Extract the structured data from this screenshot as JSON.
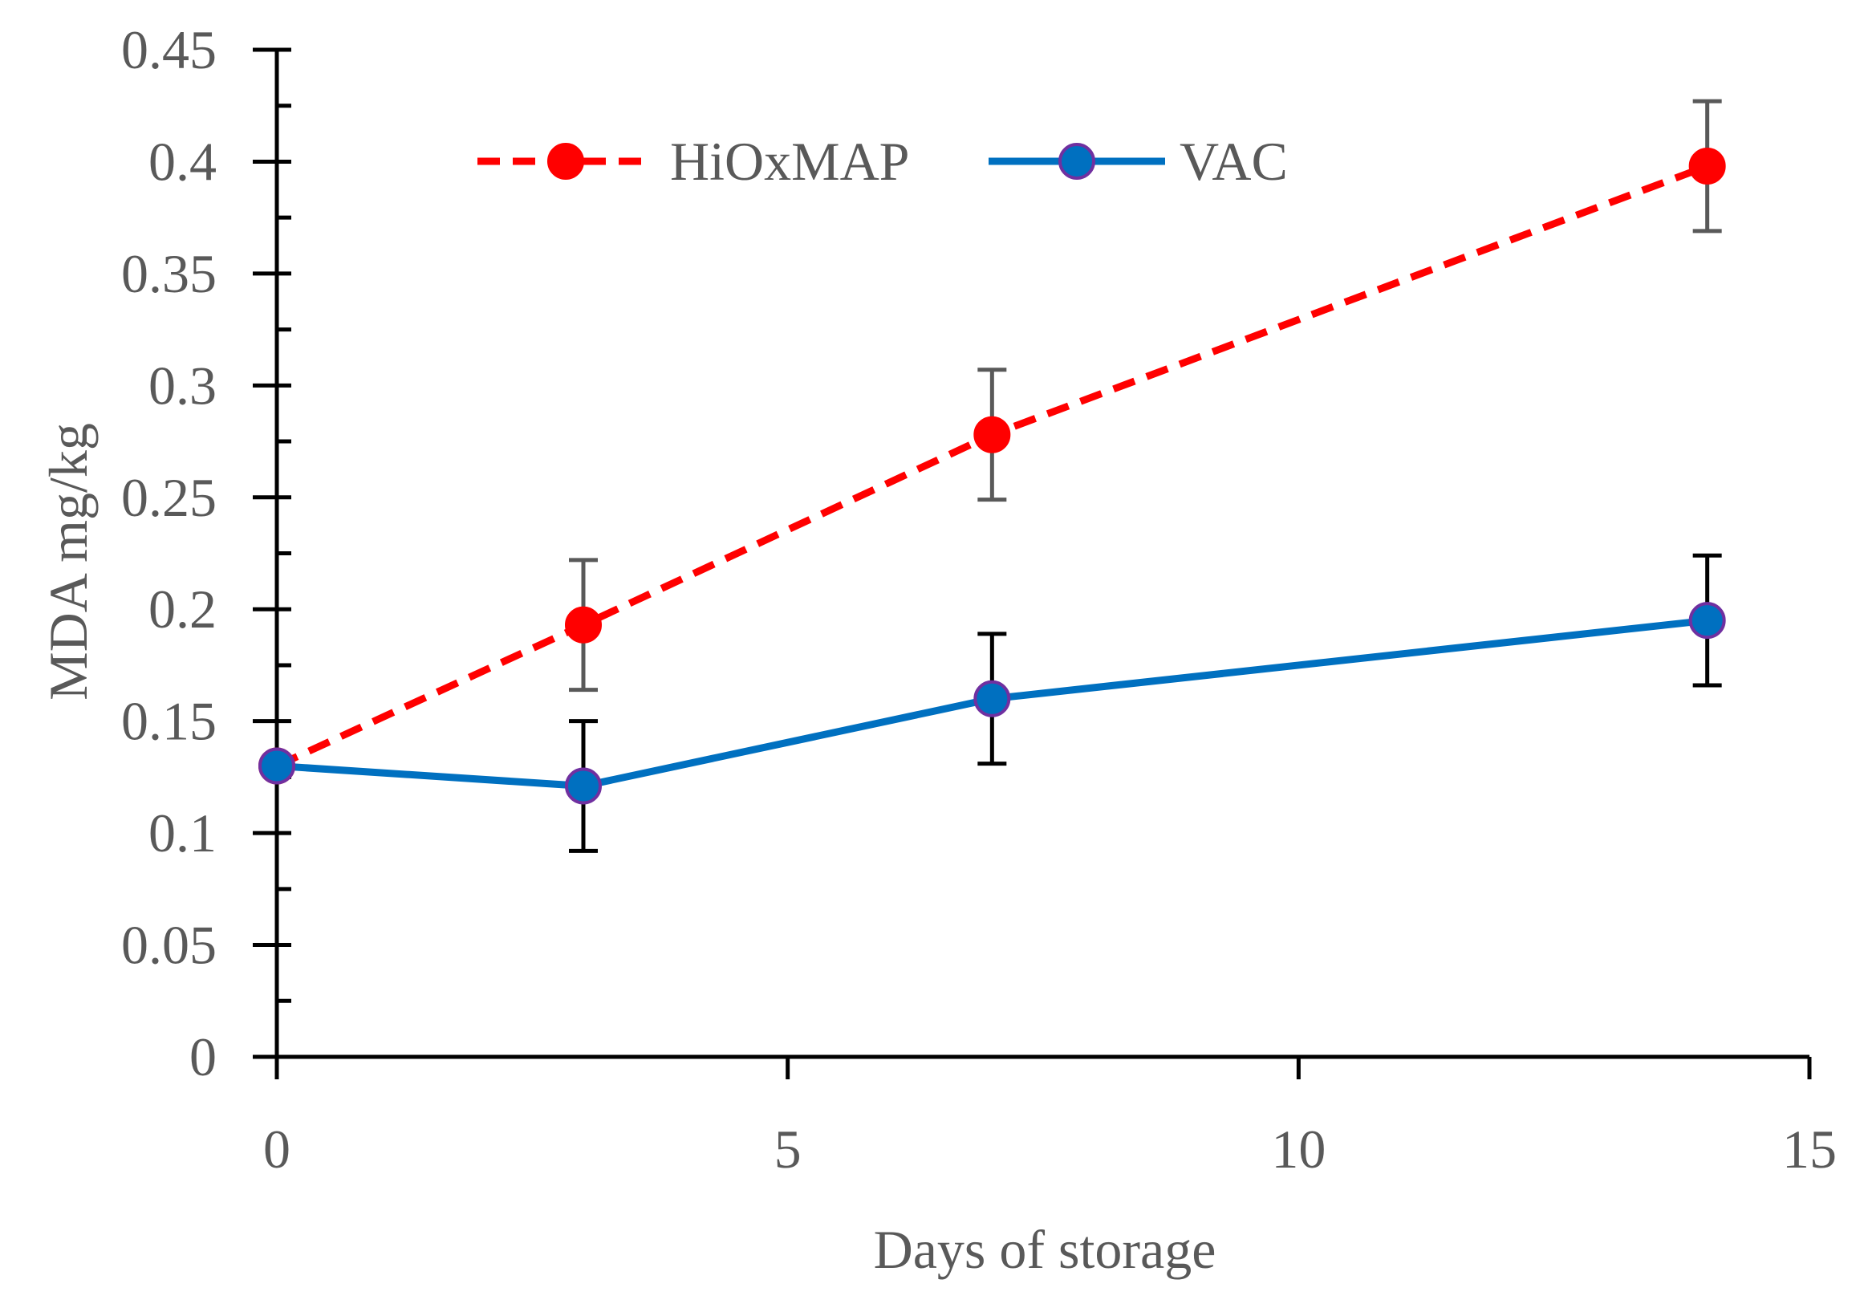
{
  "chart_data": {
    "type": "line",
    "title": "",
    "xlabel": "Days of storage",
    "ylabel": "MDA mg/kg",
    "xlim": [
      0,
      15
    ],
    "ylim": [
      0,
      0.45
    ],
    "x_ticks": [
      0,
      5,
      10,
      15
    ],
    "x_tick_labels": [
      "0",
      "5",
      "10",
      "15"
    ],
    "y_ticks": [
      0,
      0.05,
      0.1,
      0.15,
      0.2,
      0.25,
      0.3,
      0.35,
      0.4,
      0.45
    ],
    "y_tick_labels": [
      "0",
      "0.05",
      "0.1",
      "0.15",
      "0.2",
      "0.25",
      "0.3",
      "0.35",
      "0.4",
      "0.45"
    ],
    "y_minor_step": 0.025,
    "grid": false,
    "legend_position": "top-center",
    "series": [
      {
        "name": "HiOxMAP",
        "x": [
          0,
          3,
          7,
          14
        ],
        "values": [
          0.13,
          0.193,
          0.278,
          0.398
        ],
        "error": [
          0,
          0.029,
          0.029,
          0.029
        ],
        "color": "#ff0000",
        "error_color": "#595959",
        "line_style": "dashed",
        "marker_fill": "#ff0000",
        "marker_edge": "#ff0000"
      },
      {
        "name": "VAC",
        "x": [
          0,
          3,
          7,
          14
        ],
        "values": [
          0.13,
          0.121,
          0.16,
          0.195
        ],
        "error": [
          0,
          0.029,
          0.029,
          0.029
        ],
        "color": "#0070c0",
        "error_color": "#000000",
        "line_style": "solid",
        "marker_fill": "#0070c0",
        "marker_edge": "#7030a0"
      }
    ]
  }
}
